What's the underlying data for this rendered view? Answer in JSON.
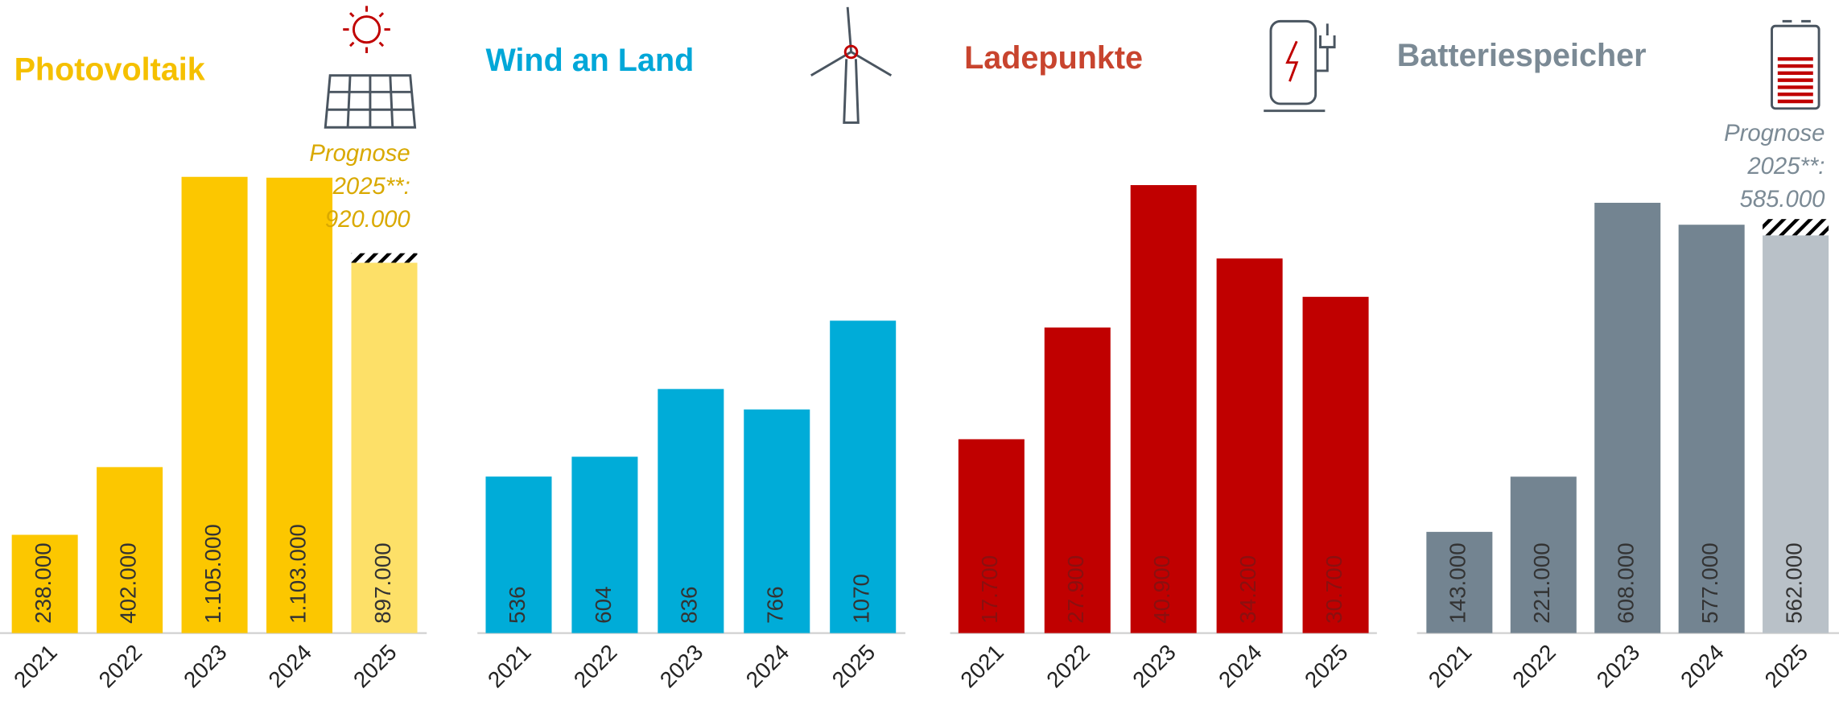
{
  "chart_data": [
    {
      "type": "bar",
      "title": "Photovoltaik",
      "title_color": "#f5c000",
      "categories": [
        "2021",
        "2022",
        "2023",
        "2024",
        "2025"
      ],
      "values": [
        238000,
        402000,
        1105000,
        1103000,
        897000
      ],
      "value_labels": [
        "238.000",
        "402.000",
        "1.105.000",
        "1.103.000",
        "897.000"
      ],
      "colors": [
        "#fcc700",
        "#fcc700",
        "#fcc700",
        "#fcc700",
        "#fde068"
      ],
      "label_color": "#333333",
      "forecast_note": [
        "Prognose",
        "2025**:"
      ],
      "forecast_value": 920000,
      "forecast_value_label": "920.000",
      "note_color": "#d9a900"
    },
    {
      "type": "bar",
      "title": "Wind an Land",
      "title_color": "#00a7d8",
      "categories": [
        "2021",
        "2022",
        "2023",
        "2024",
        "2025"
      ],
      "values": [
        536,
        604,
        836,
        766,
        1070
      ],
      "colors": [
        "#00acd8",
        "#00acd8",
        "#00acd8",
        "#00acd8",
        "#00acd8"
      ],
      "label_color": "#333333"
    },
    {
      "type": "bar",
      "title": "Ladepunkte",
      "title_color": "#c8442e",
      "categories": [
        "2021",
        "2022",
        "2023",
        "2024",
        "2025"
      ],
      "values": [
        17700,
        27900,
        40900,
        34200,
        30700
      ],
      "value_labels": [
        "17.700",
        "27.900",
        "40.900",
        "34.200",
        "30.700"
      ],
      "colors": [
        "#c00000",
        "#c00000",
        "#c00000",
        "#c00000",
        "#c00000"
      ],
      "label_color": "#8a1010"
    },
    {
      "type": "bar",
      "title": "Batteriespeicher",
      "title_color": "#7b8a95",
      "categories": [
        "2021",
        "2022",
        "2023",
        "2024",
        "2025"
      ],
      "values": [
        143000,
        221000,
        608000,
        577000,
        562000
      ],
      "value_labels": [
        "143.000",
        "221.000",
        "608.000",
        "577.000",
        "562.000"
      ],
      "colors": [
        "#738491",
        "#738491",
        "#738491",
        "#738491",
        "#b9c1c8"
      ],
      "label_color": "#333333",
      "forecast_note": [
        "Prognose",
        "2025**:"
      ],
      "forecast_value": 585000,
      "forecast_value_label": "585.000",
      "note_color": "#7b8a95"
    }
  ]
}
